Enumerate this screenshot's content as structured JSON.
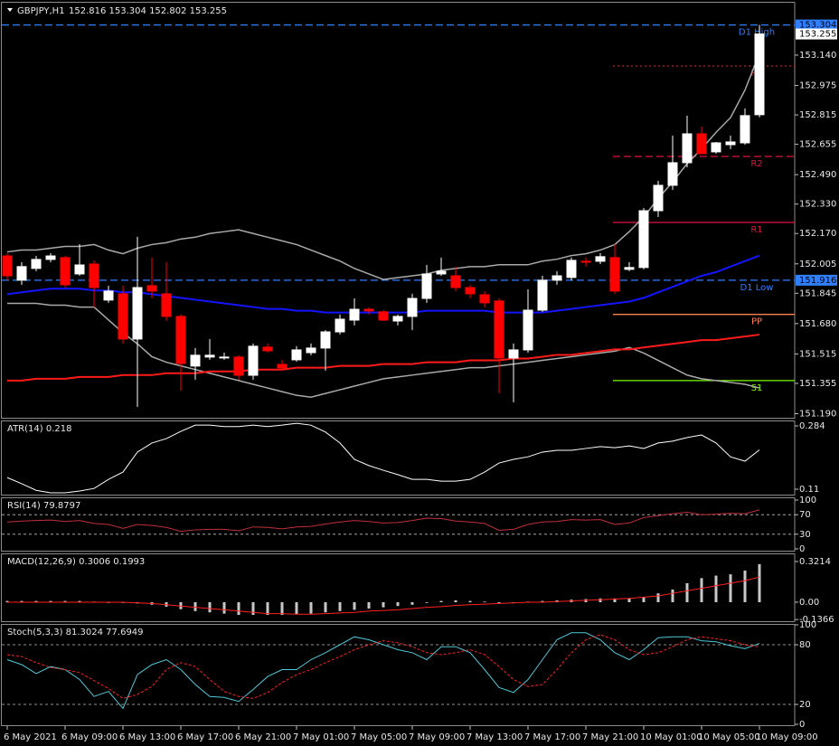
{
  "chart_data": [
    {
      "type": "candlestick",
      "title": "GBPJPY,H1",
      "subtitle": "152.816 153.304 152.802 153.255",
      "categories": [
        "6 May 2021",
        null,
        null,
        null,
        "6 May 09:00",
        null,
        null,
        null,
        "6 May 13:00",
        null,
        null,
        null,
        "6 May 17:00",
        null,
        null,
        null,
        "6 May 21:00",
        null,
        null,
        null,
        "7 May 01:00",
        null,
        null,
        null,
        "7 May 05:00",
        null,
        null,
        null,
        "7 May 09:00",
        null,
        null,
        null,
        "7 May 13:00",
        null,
        null,
        null,
        "7 May 17:00",
        null,
        null,
        null,
        "7 May 21:00",
        null,
        null,
        null,
        "10 May 01:00",
        null,
        null,
        null,
        "10 May 05:00",
        null,
        null,
        null,
        "10 May 09:00"
      ],
      "open": [
        152.048,
        151.916,
        151.98,
        152.029,
        152.039,
        151.95,
        152.004,
        151.808,
        151.842,
        151.596,
        151.886,
        151.842,
        151.719,
        151.449,
        151.498,
        151.493,
        151.498,
        151.399,
        151.552,
        151.458,
        151.483,
        151.522,
        151.547,
        151.635,
        151.699,
        151.758,
        151.744,
        151.694,
        151.719,
        151.817,
        151.95,
        151.94,
        151.876,
        151.837,
        151.803,
        151.493,
        151.537,
        151.753,
        151.916,
        151.931,
        152.019,
        152.019,
        152.039,
        151.975,
        151.985,
        152.294,
        152.432,
        152.555,
        152.712,
        152.614,
        152.653,
        152.663,
        152.816
      ],
      "high": [
        152.063,
        152.014,
        152.048,
        152.063,
        152.048,
        152.112,
        152.024,
        151.886,
        151.886,
        152.152,
        152.039,
        152.014,
        151.729,
        151.547,
        151.596,
        151.522,
        151.508,
        151.572,
        151.572,
        151.483,
        151.557,
        151.572,
        151.645,
        151.729,
        151.817,
        151.768,
        151.753,
        151.729,
        151.842,
        151.999,
        152.039,
        151.99,
        151.891,
        151.857,
        151.817,
        151.572,
        151.867,
        151.94,
        151.965,
        152.039,
        152.039,
        152.063,
        152.112,
        152.014,
        152.309,
        152.457,
        152.702,
        152.811,
        152.752,
        152.668,
        152.702,
        152.85,
        153.304
      ],
      "low": [
        151.916,
        151.891,
        151.965,
        152.014,
        151.876,
        151.94,
        151.768,
        151.793,
        151.572,
        151.227,
        151.817,
        151.694,
        151.316,
        151.375,
        151.483,
        151.483,
        151.375,
        151.375,
        151.522,
        151.424,
        151.473,
        151.508,
        151.424,
        151.621,
        151.67,
        151.729,
        151.694,
        151.67,
        151.645,
        151.793,
        151.94,
        151.857,
        151.817,
        151.768,
        151.301,
        151.252,
        151.522,
        151.744,
        151.891,
        151.916,
        151.99,
        152.004,
        151.842,
        151.965,
        151.975,
        152.26,
        152.407,
        152.53,
        152.604,
        152.604,
        152.629,
        152.653,
        152.802
      ],
      "close": [
        151.94,
        151.99,
        152.029,
        152.048,
        151.891,
        151.999,
        151.876,
        151.857,
        151.596,
        151.876,
        151.857,
        151.719,
        151.463,
        151.508,
        151.508,
        151.498,
        151.399,
        151.557,
        151.532,
        151.439,
        151.537,
        151.547,
        151.635,
        151.704,
        151.758,
        151.749,
        151.699,
        151.719,
        151.817,
        151.95,
        151.965,
        151.876,
        151.842,
        151.793,
        151.493,
        151.537,
        151.753,
        151.916,
        151.94,
        152.024,
        152.014,
        152.044,
        151.857,
        151.985,
        152.294,
        152.432,
        152.555,
        152.712,
        152.604,
        152.663,
        152.668,
        152.811,
        153.255
      ],
      "up_color": "#ffffff",
      "down_color": "#ff0000",
      "lines": [
        {
          "color": "#a9a9a9",
          "width": 1.5,
          "values": [
            152.07,
            152.08,
            152.08,
            152.09,
            152.1,
            152.1,
            152.11,
            152.08,
            152.06,
            152.09,
            152.11,
            152.12,
            152.14,
            152.15,
            152.17,
            152.18,
            152.19,
            152.17,
            152.15,
            152.13,
            152.11,
            152.08,
            152.05,
            152.02,
            151.98,
            151.95,
            151.92,
            151.93,
            151.94,
            151.95,
            151.97,
            151.98,
            151.99,
            151.99,
            152.0,
            152.0,
            152.0,
            152.02,
            152.03,
            152.05,
            152.06,
            152.08,
            152.11,
            152.18,
            152.26,
            152.36,
            152.45,
            152.55,
            152.63,
            152.72,
            152.8,
            152.95,
            153.15
          ]
        },
        {
          "color": "#a9a9a9",
          "width": 1.5,
          "values": [
            151.79,
            151.79,
            151.79,
            151.78,
            151.78,
            151.77,
            151.77,
            151.7,
            151.63,
            151.57,
            151.5,
            151.47,
            151.45,
            151.43,
            151.41,
            151.39,
            151.37,
            151.35,
            151.33,
            151.31,
            151.29,
            151.28,
            151.3,
            151.32,
            151.34,
            151.36,
            151.38,
            151.39,
            151.4,
            151.41,
            151.42,
            151.43,
            151.44,
            151.44,
            151.45,
            151.46,
            151.47,
            151.48,
            151.49,
            151.5,
            151.51,
            151.52,
            151.53,
            151.55,
            151.52,
            151.48,
            151.44,
            151.4,
            151.38,
            151.37,
            151.36,
            151.35,
            151.33
          ]
        },
        {
          "color": "#1414ff",
          "width": 2,
          "values": [
            151.84,
            151.85,
            151.86,
            151.87,
            151.87,
            151.87,
            151.86,
            151.86,
            151.85,
            151.85,
            151.84,
            151.83,
            151.82,
            151.81,
            151.8,
            151.79,
            151.78,
            151.77,
            151.76,
            151.76,
            151.75,
            151.75,
            151.74,
            151.74,
            151.74,
            151.74,
            151.74,
            151.74,
            151.74,
            151.75,
            151.75,
            151.75,
            151.75,
            151.75,
            151.74,
            151.74,
            151.74,
            151.74,
            151.75,
            151.76,
            151.77,
            151.78,
            151.79,
            151.8,
            151.82,
            151.85,
            151.88,
            151.91,
            151.94,
            151.96,
            151.99,
            152.02,
            152.05
          ]
        },
        {
          "color": "#ff1a1a",
          "width": 2,
          "values": [
            151.37,
            151.37,
            151.38,
            151.38,
            151.38,
            151.39,
            151.39,
            151.39,
            151.4,
            151.4,
            151.4,
            151.41,
            151.41,
            151.41,
            151.42,
            151.42,
            151.42,
            151.43,
            151.43,
            151.43,
            151.44,
            151.44,
            151.44,
            151.45,
            151.45,
            151.45,
            151.46,
            151.46,
            151.46,
            151.47,
            151.47,
            151.47,
            151.48,
            151.48,
            151.48,
            151.49,
            151.49,
            151.5,
            151.51,
            151.51,
            151.52,
            151.53,
            151.54,
            151.54,
            151.55,
            151.56,
            151.57,
            151.58,
            151.59,
            151.59,
            151.6,
            151.61,
            151.62
          ]
        }
      ],
      "levels": [
        {
          "name": "D1 High",
          "value": 153.304,
          "color": "#2f7fff",
          "style": "dashed",
          "span": "full",
          "axis_label": true
        },
        {
          "name": "R3",
          "value": 153.081,
          "color": "#c02020",
          "style": "dotted",
          "span": "right"
        },
        {
          "name": "R2",
          "value": 152.589,
          "color": "#dc143c",
          "style": "dashed",
          "span": "right"
        },
        {
          "name": "R1",
          "value": 152.23,
          "color": "#dc143c",
          "style": "solid",
          "span": "right"
        },
        {
          "name": "PP",
          "value": 151.73,
          "color": "#ff7f50",
          "style": "solid",
          "span": "right"
        },
        {
          "name": "S1",
          "value": 151.37,
          "color": "#7cfc00",
          "style": "solid",
          "span": "right"
        },
        {
          "name": "D1 Low",
          "value": 151.916,
          "color": "#2f7fff",
          "style": "dashed",
          "span": "full",
          "axis_label": true
        }
      ],
      "last_price_label": true,
      "ylim": [
        151.163,
        153.371
      ],
      "yticks": [
        {
          "value": 153.14,
          "label": "153.140"
        },
        152.975,
        152.815,
        152.655,
        {
          "value": 152.49,
          "label": "152.490"
        },
        {
          "value": 152.33,
          "label": "152.330"
        },
        {
          "value": 152.17,
          "label": "152.170"
        },
        152.005,
        151.845,
        {
          "value": 151.68,
          "label": "151.680"
        },
        151.515,
        151.355,
        {
          "value": 151.19,
          "label": "151.190"
        }
      ],
      "grid": false
    },
    {
      "type": "line",
      "title": "ATR(14) 0.218",
      "ylim": [
        0.0926,
        0.2964
      ],
      "yticks": [
        0.284,
        0.11
      ],
      "grid": false,
      "series": [
        {
          "color": "#ffffff",
          "values": [
            0.142,
            0.125,
            0.107,
            0.1,
            0.1,
            0.105,
            0.112,
            0.137,
            0.157,
            0.212,
            0.237,
            0.249,
            0.269,
            0.286,
            0.286,
            0.282,
            0.282,
            0.286,
            0.282,
            0.286,
            0.291,
            0.286,
            0.267,
            0.237,
            0.192,
            0.175,
            0.162,
            0.15,
            0.137,
            0.137,
            0.132,
            0.132,
            0.137,
            0.157,
            0.182,
            0.192,
            0.199,
            0.212,
            0.217,
            0.217,
            0.222,
            0.227,
            0.224,
            0.229,
            0.222,
            0.237,
            0.242,
            0.252,
            0.259,
            0.237,
            0.199,
            0.187,
            0.218
          ]
        }
      ]
    },
    {
      "type": "line",
      "title": "RSI(14) 79.8797",
      "ylim": [
        0,
        100
      ],
      "yticks": [
        100,
        70,
        30,
        0
      ],
      "grid": true,
      "series": [
        {
          "color": "#c0303a",
          "values": [
            55,
            57,
            58,
            59,
            56,
            58,
            52,
            50,
            42,
            50,
            48,
            44,
            36,
            39,
            40,
            40,
            37,
            45,
            44,
            41,
            45,
            46,
            51,
            55,
            58,
            56,
            53,
            54,
            58,
            63,
            62,
            57,
            55,
            52,
            38,
            40,
            50,
            55,
            56,
            60,
            59,
            60,
            50,
            53,
            64,
            68,
            72,
            75,
            70,
            71,
            73,
            72,
            79.8797
          ]
        }
      ]
    },
    {
      "type": "macd",
      "title": "MACD(12,26,9) 0.3006 0.1993",
      "ylim": [
        -0.157,
        0.371
      ],
      "yticks": [
        0.3214,
        {
          "value": 0,
          "label": "0.00"
        },
        -0.1366
      ],
      "grid": false,
      "series": [
        {
          "type": "bar",
          "color": "#c8c8c8",
          "values": [
            0.01,
            0.01,
            0.01,
            0.01,
            0.01,
            0.01,
            0.005,
            0,
            -0.005,
            -0.01,
            -0.02,
            -0.035,
            -0.055,
            -0.07,
            -0.08,
            -0.09,
            -0.1,
            -0.1,
            -0.1,
            -0.1,
            -0.095,
            -0.09,
            -0.08,
            -0.07,
            -0.06,
            -0.05,
            -0.04,
            -0.03,
            -0.02,
            -0.005,
            0.01,
            0.015,
            0.01,
            0.005,
            -0.01,
            -0.005,
            0.005,
            0.01,
            0.015,
            0.02,
            0.025,
            0.03,
            0.03,
            0.03,
            0.04,
            0.07,
            0.1,
            0.15,
            0.19,
            0.21,
            0.22,
            0.25,
            0.3006
          ]
        },
        {
          "type": "line",
          "color": "#ff2020",
          "values": [
            0,
            0,
            0,
            0,
            0,
            0,
            0,
            0,
            0,
            -0.005,
            -0.01,
            -0.02,
            -0.03,
            -0.04,
            -0.05,
            -0.06,
            -0.07,
            -0.08,
            -0.09,
            -0.09,
            -0.095,
            -0.095,
            -0.09,
            -0.085,
            -0.08,
            -0.07,
            -0.065,
            -0.06,
            -0.05,
            -0.04,
            -0.035,
            -0.025,
            -0.02,
            -0.015,
            -0.01,
            -0.005,
            0,
            0,
            0.005,
            0.01,
            0.015,
            0.02,
            0.025,
            0.03,
            0.04,
            0.05,
            0.07,
            0.09,
            0.11,
            0.13,
            0.15,
            0.17,
            0.1993
          ]
        }
      ]
    },
    {
      "type": "line",
      "title": "Stoch(5,3,3) 81.3024 77.6949",
      "ylim": [
        0,
        100
      ],
      "yticks": [
        100,
        80,
        20,
        0
      ],
      "grid": true,
      "series": [
        {
          "color": "#4fc8d8",
          "values": [
            65,
            60,
            51,
            58,
            55,
            45,
            28,
            33,
            16,
            50,
            60,
            65,
            55,
            40,
            28,
            27,
            23,
            35,
            48,
            55,
            55,
            65,
            72,
            80,
            88,
            85,
            80,
            75,
            72,
            65,
            78,
            78,
            72,
            55,
            37,
            32,
            45,
            65,
            85,
            92,
            92,
            85,
            72,
            65,
            75,
            87,
            88,
            88,
            84,
            83,
            79,
            76,
            81.3024
          ]
        },
        {
          "color": "#ff2020",
          "dash": true,
          "values": [
            70,
            68,
            62,
            57,
            55,
            52,
            44,
            36,
            26,
            30,
            38,
            55,
            62,
            58,
            45,
            33,
            28,
            26,
            32,
            42,
            50,
            55,
            62,
            68,
            75,
            80,
            84,
            82,
            78,
            72,
            70,
            72,
            75,
            70,
            58,
            45,
            38,
            40,
            55,
            72,
            85,
            90,
            85,
            75,
            70,
            72,
            78,
            85,
            88,
            86,
            84,
            80,
            77.6949
          ]
        }
      ]
    }
  ]
}
